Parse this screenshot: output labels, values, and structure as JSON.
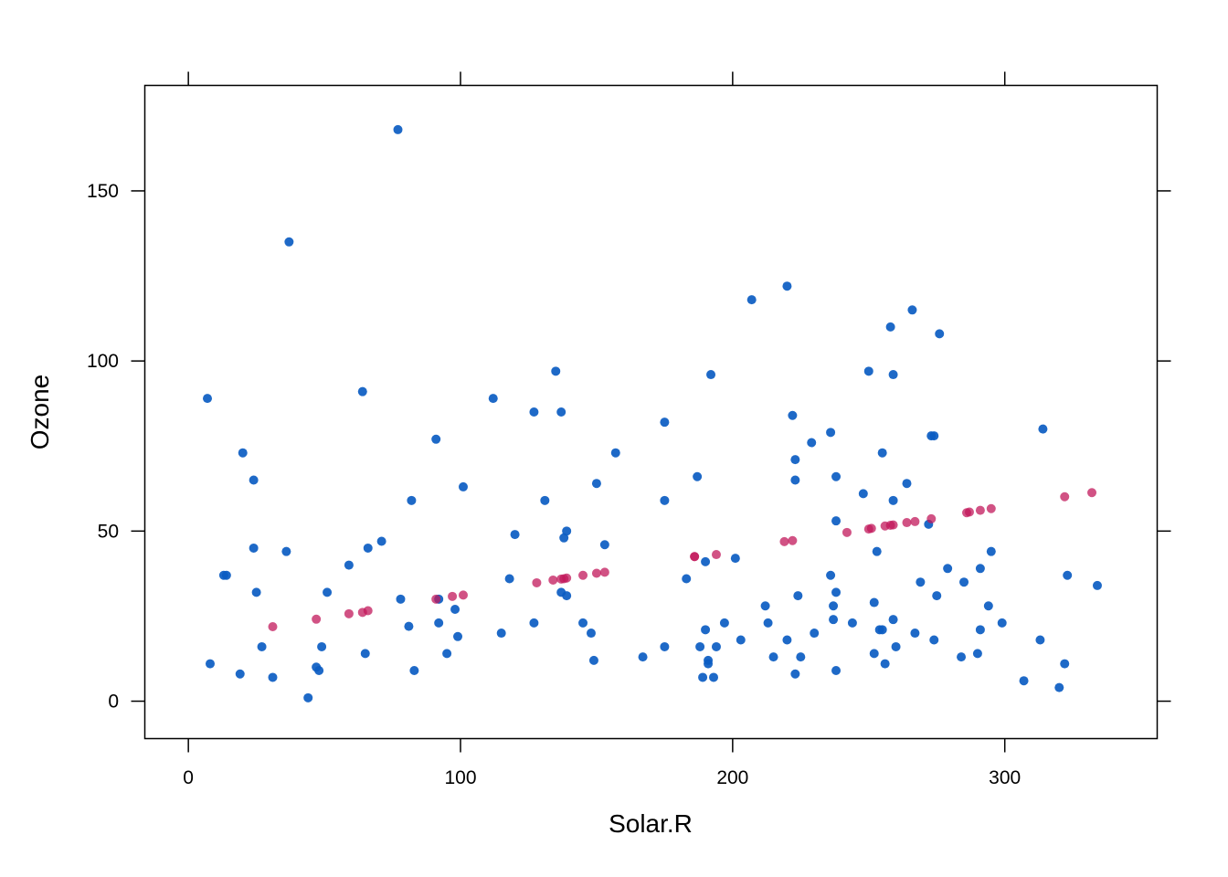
{
  "chart_data": {
    "type": "scatter",
    "xlabel": "Solar.R",
    "ylabel": "Ozone",
    "xlim": [
      -16,
      356
    ],
    "ylim": [
      -11,
      181
    ],
    "x_ticks": [
      0,
      100,
      200,
      300
    ],
    "y_ticks": [
      0,
      50,
      100,
      150
    ],
    "grid": false,
    "colors": {
      "observed": "#0b5cc2",
      "imputed": "#c2185b",
      "frame": "#000000"
    },
    "series": [
      {
        "x": [
          190,
          118,
          149,
          313,
          299,
          99,
          19,
          194,
          256,
          290,
          274,
          65,
          334,
          307,
          78,
          322,
          44,
          8,
          320,
          25,
          92,
          66,
          266,
          13,
          252,
          223,
          279,
          127,
          291,
          323,
          148,
          191,
          284,
          37,
          120,
          137,
          150,
          59,
          91,
          250,
          135,
          127,
          47,
          98,
          31,
          138,
          269,
          248,
          236,
          101,
          175,
          314,
          276,
          267,
          272,
          175,
          139,
          264,
          175,
          291,
          48,
          260,
          274,
          285,
          187,
          220,
          7,
          258,
          295,
          294,
          223,
          81,
          82,
          213,
          275,
          253,
          254,
          83,
          24,
          77,
          255,
          229,
          207,
          222,
          137,
          192,
          273,
          157,
          64,
          71,
          51,
          115,
          244,
          190,
          259,
          36,
          255,
          212,
          238,
          215,
          153,
          203,
          225,
          237,
          188,
          167,
          197,
          183,
          189,
          95,
          92,
          252,
          220,
          230,
          259,
          236,
          259,
          238,
          24,
          112,
          237,
          224,
          27,
          238,
          201,
          238,
          14,
          139,
          49,
          20,
          193,
          145,
          191,
          131,
          223
        ],
        "y": [
          41,
          36,
          12,
          18,
          23,
          19,
          8,
          16,
          11,
          14,
          18,
          14,
          34,
          6,
          30,
          11,
          1,
          11,
          4,
          32,
          23,
          45,
          115,
          37,
          29,
          71,
          39,
          23,
          21,
          37,
          20,
          12,
          13,
          135,
          49,
          32,
          64,
          40,
          77,
          97,
          97,
          85,
          10,
          27,
          7,
          48,
          35,
          61,
          79,
          63,
          16,
          80,
          108,
          20,
          52,
          82,
          50,
          64,
          59,
          39,
          9,
          16,
          78,
          35,
          66,
          122,
          89,
          110,
          44,
          28,
          65,
          22,
          59,
          23,
          31,
          44,
          21,
          9,
          45,
          168,
          73,
          76,
          118,
          84,
          85,
          96,
          78,
          73,
          91,
          47,
          32,
          20,
          23,
          21,
          24,
          44,
          21,
          28,
          9,
          13,
          46,
          18,
          13,
          24,
          16,
          13,
          23,
          36,
          7,
          14,
          30,
          14,
          18,
          20,
          59,
          37,
          96,
          53,
          65,
          89,
          28,
          31,
          16,
          66,
          42,
          32,
          37,
          31,
          16,
          73,
          7,
          23,
          11,
          59,
          8
        ]
      },
      {
        "x": [
          186,
          97,
          66,
          59,
          47,
          64,
          31,
          139,
          186,
          101,
          91,
          134,
          137,
          138,
          150,
          153,
          145,
          128,
          194,
          219,
          222,
          242,
          251,
          256,
          258,
          259,
          264,
          267,
          273,
          286,
          287,
          291,
          295,
          322,
          332,
          250
        ],
        "y": [
          42.5,
          30.8,
          26.6,
          25.7,
          24.1,
          26.1,
          21.9,
          36.2,
          42.5,
          31.2,
          30.0,
          35.6,
          35.9,
          36.0,
          37.6,
          37.9,
          37.0,
          34.8,
          43.1,
          46.9,
          47.2,
          49.6,
          50.8,
          51.5,
          51.7,
          51.8,
          52.5,
          52.8,
          53.6,
          55.4,
          55.6,
          56.1,
          56.6,
          60.1,
          61.3,
          50.6
        ]
      }
    ]
  }
}
